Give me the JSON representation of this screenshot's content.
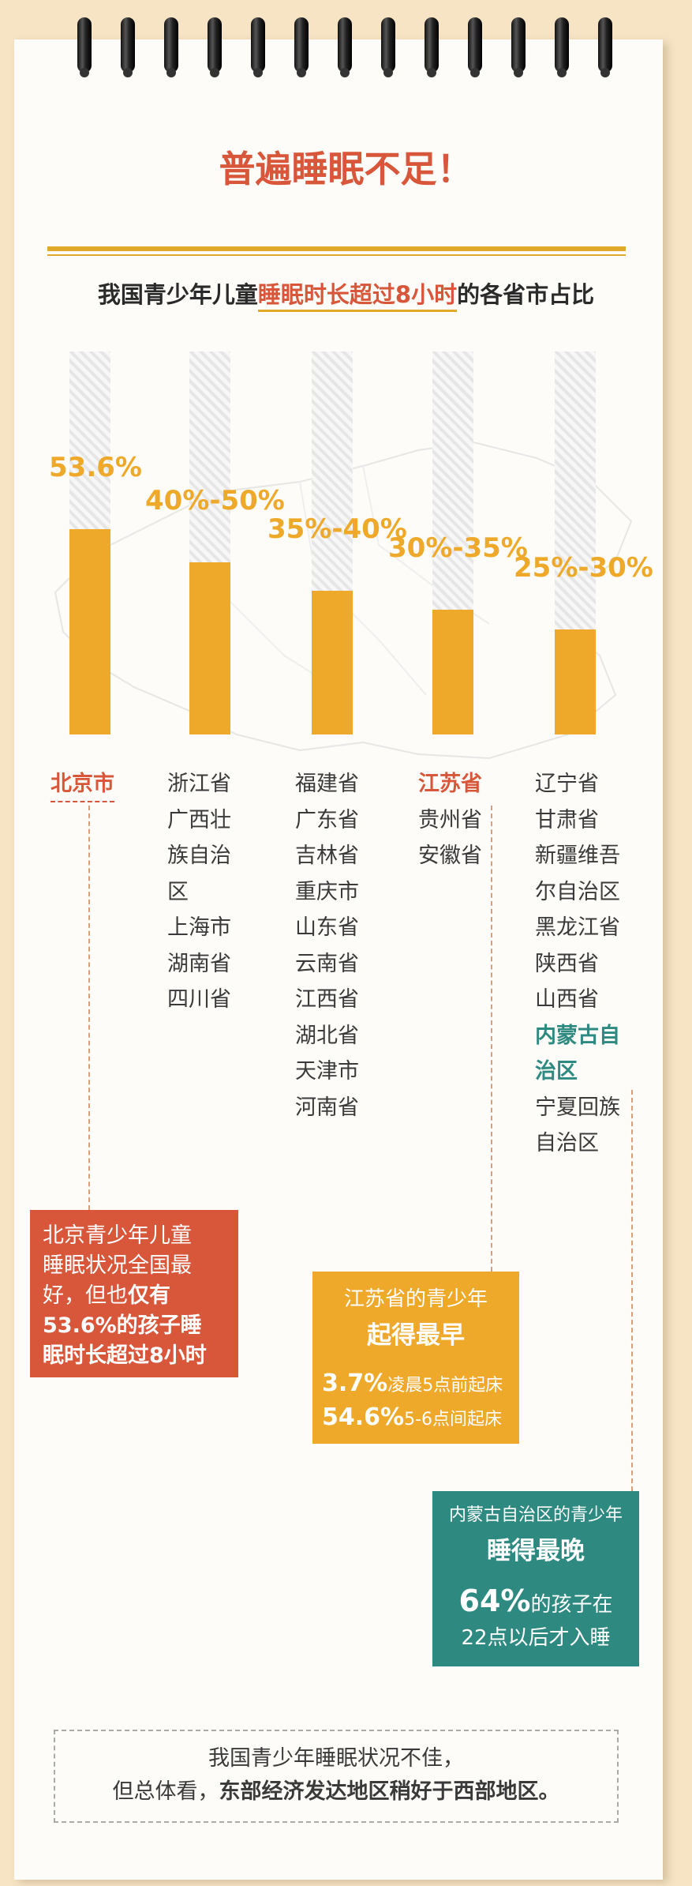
{
  "title": "普遍睡眠不足！",
  "subtitle": {
    "pre": "我国青少年儿童",
    "highlight": "睡眠时长超过8小时",
    "post": "的各省市占比"
  },
  "colors": {
    "accent": "#efa92a",
    "red": "#d8563a",
    "teal": "#2e8a80",
    "background": "#f6e4c5"
  },
  "chart_data": {
    "type": "bar",
    "title": "我国青少年儿童睡眠时长超过8小时的各省市占比",
    "categories": [
      "北京市",
      "浙江省等",
      "福建省等",
      "江苏省等",
      "辽宁省等"
    ],
    "values": [
      53.6,
      45,
      37.5,
      32.5,
      27.5
    ],
    "value_labels": [
      "53.6%",
      "40%-50%",
      "35%-40%",
      "30%-35%",
      "25%-30%"
    ],
    "ylim": [
      0,
      100
    ],
    "groups": [
      {
        "header": "北京市",
        "provinces": []
      },
      {
        "header": "",
        "provinces": [
          "浙江省",
          "广西壮",
          "族自治",
          "区",
          "上海市",
          "湖南省",
          "四川省"
        ]
      },
      {
        "header": "",
        "provinces": [
          "福建省",
          "广东省",
          "吉林省",
          "重庆市",
          "山东省",
          "云南省",
          "江西省",
          "湖北省",
          "天津市",
          "河南省"
        ]
      },
      {
        "header": "江苏省",
        "provinces": [
          "贵州省",
          "安徽省"
        ]
      },
      {
        "header": "",
        "provinces": [
          "辽宁省",
          "甘肃省",
          "新疆维吾",
          "尔自治区",
          "黑龙江省",
          "陕西省",
          "山西省"
        ],
        "teal": [
          "内蒙古自",
          "治区"
        ],
        "after": [
          "宁夏回族",
          "自治区"
        ]
      }
    ]
  },
  "callout_beijing": {
    "line1": "北京青少年儿童",
    "line2": "睡眠状况全国最",
    "line3a": "好，但也",
    "line3b": "仅有",
    "line4": "53.6%的孩子睡",
    "line5": "眠时长超过8小时"
  },
  "callout_jiangsu": {
    "line1": "江苏省的青少年",
    "line2": "起得最早",
    "stat1_value": "3.7%",
    "stat1_text": "凌晨5点前起床",
    "stat2_value": "54.6%",
    "stat2_text": "5-6点间起床"
  },
  "callout_neimenggu": {
    "line1": "内蒙古自治区的青少年",
    "line2": "睡得最晚",
    "stat_value": "64%",
    "stat_text": "的孩子在",
    "line4": "22点以后才入睡"
  },
  "summary": {
    "line1": "我国青少年睡眠状况不佳，",
    "line2a": "但总体看，",
    "line2b": "东部经济发达地区稍好于西部地区。"
  }
}
